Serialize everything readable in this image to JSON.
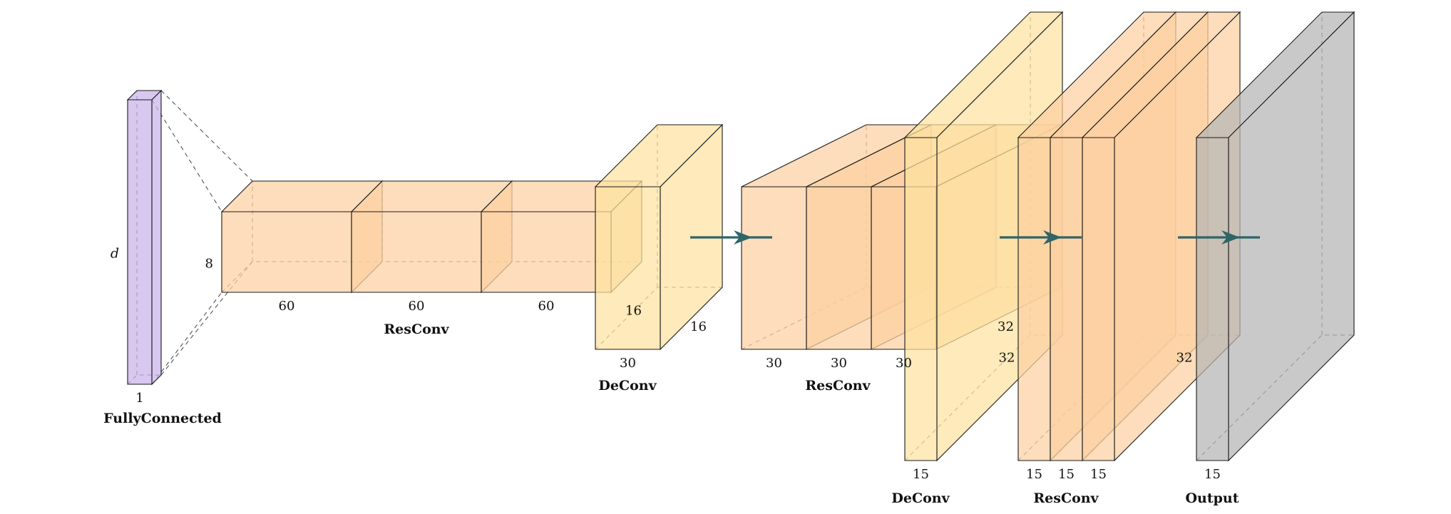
{
  "palette": {
    "fc": "#c9b3ea",
    "resconv": "#fcd0a1",
    "deconv": "#fde2a0",
    "output": "#b4b4b4",
    "arrow": "#2f6468"
  },
  "blocks": [
    {
      "caption": "FullyConnected",
      "layers": [
        {
          "role": "fc",
          "label_height": "d",
          "label_depth": "1",
          "label_width": ""
        }
      ]
    },
    {
      "caption": "ResConv",
      "layers": [
        {
          "role": "resconv",
          "label_height": "8",
          "label_depth": "60",
          "label_width": ""
        },
        {
          "role": "resconv",
          "label_height": "",
          "label_depth": "60",
          "label_width": ""
        },
        {
          "role": "resconv",
          "label_height": "",
          "label_depth": "60",
          "label_width": "16"
        }
      ]
    },
    {
      "caption": "DeConv",
      "layers": [
        {
          "role": "deconv",
          "label_height": "",
          "label_depth": "30",
          "label_width": "16"
        }
      ]
    },
    {
      "caption": "ResConv",
      "layers": [
        {
          "role": "resconv",
          "label_height": "",
          "label_depth": "30",
          "label_width": ""
        },
        {
          "role": "resconv",
          "label_height": "",
          "label_depth": "30",
          "label_width": ""
        },
        {
          "role": "resconv",
          "label_height": "",
          "label_depth": "30",
          "label_width": "32"
        }
      ]
    },
    {
      "caption": "DeConv",
      "layers": [
        {
          "role": "deconv",
          "label_height": "",
          "label_depth": "15",
          "label_width": "32"
        }
      ]
    },
    {
      "caption": "ResConv",
      "layers": [
        {
          "role": "resconv",
          "label_height": "",
          "label_depth": "15",
          "label_width": ""
        },
        {
          "role": "resconv",
          "label_height": "",
          "label_depth": "15",
          "label_width": ""
        },
        {
          "role": "resconv",
          "label_height": "",
          "label_depth": "15",
          "label_width": "32"
        }
      ]
    },
    {
      "caption": "Output",
      "layers": [
        {
          "role": "output",
          "label_height": "",
          "label_depth": "15",
          "label_width": ""
        }
      ]
    }
  ]
}
